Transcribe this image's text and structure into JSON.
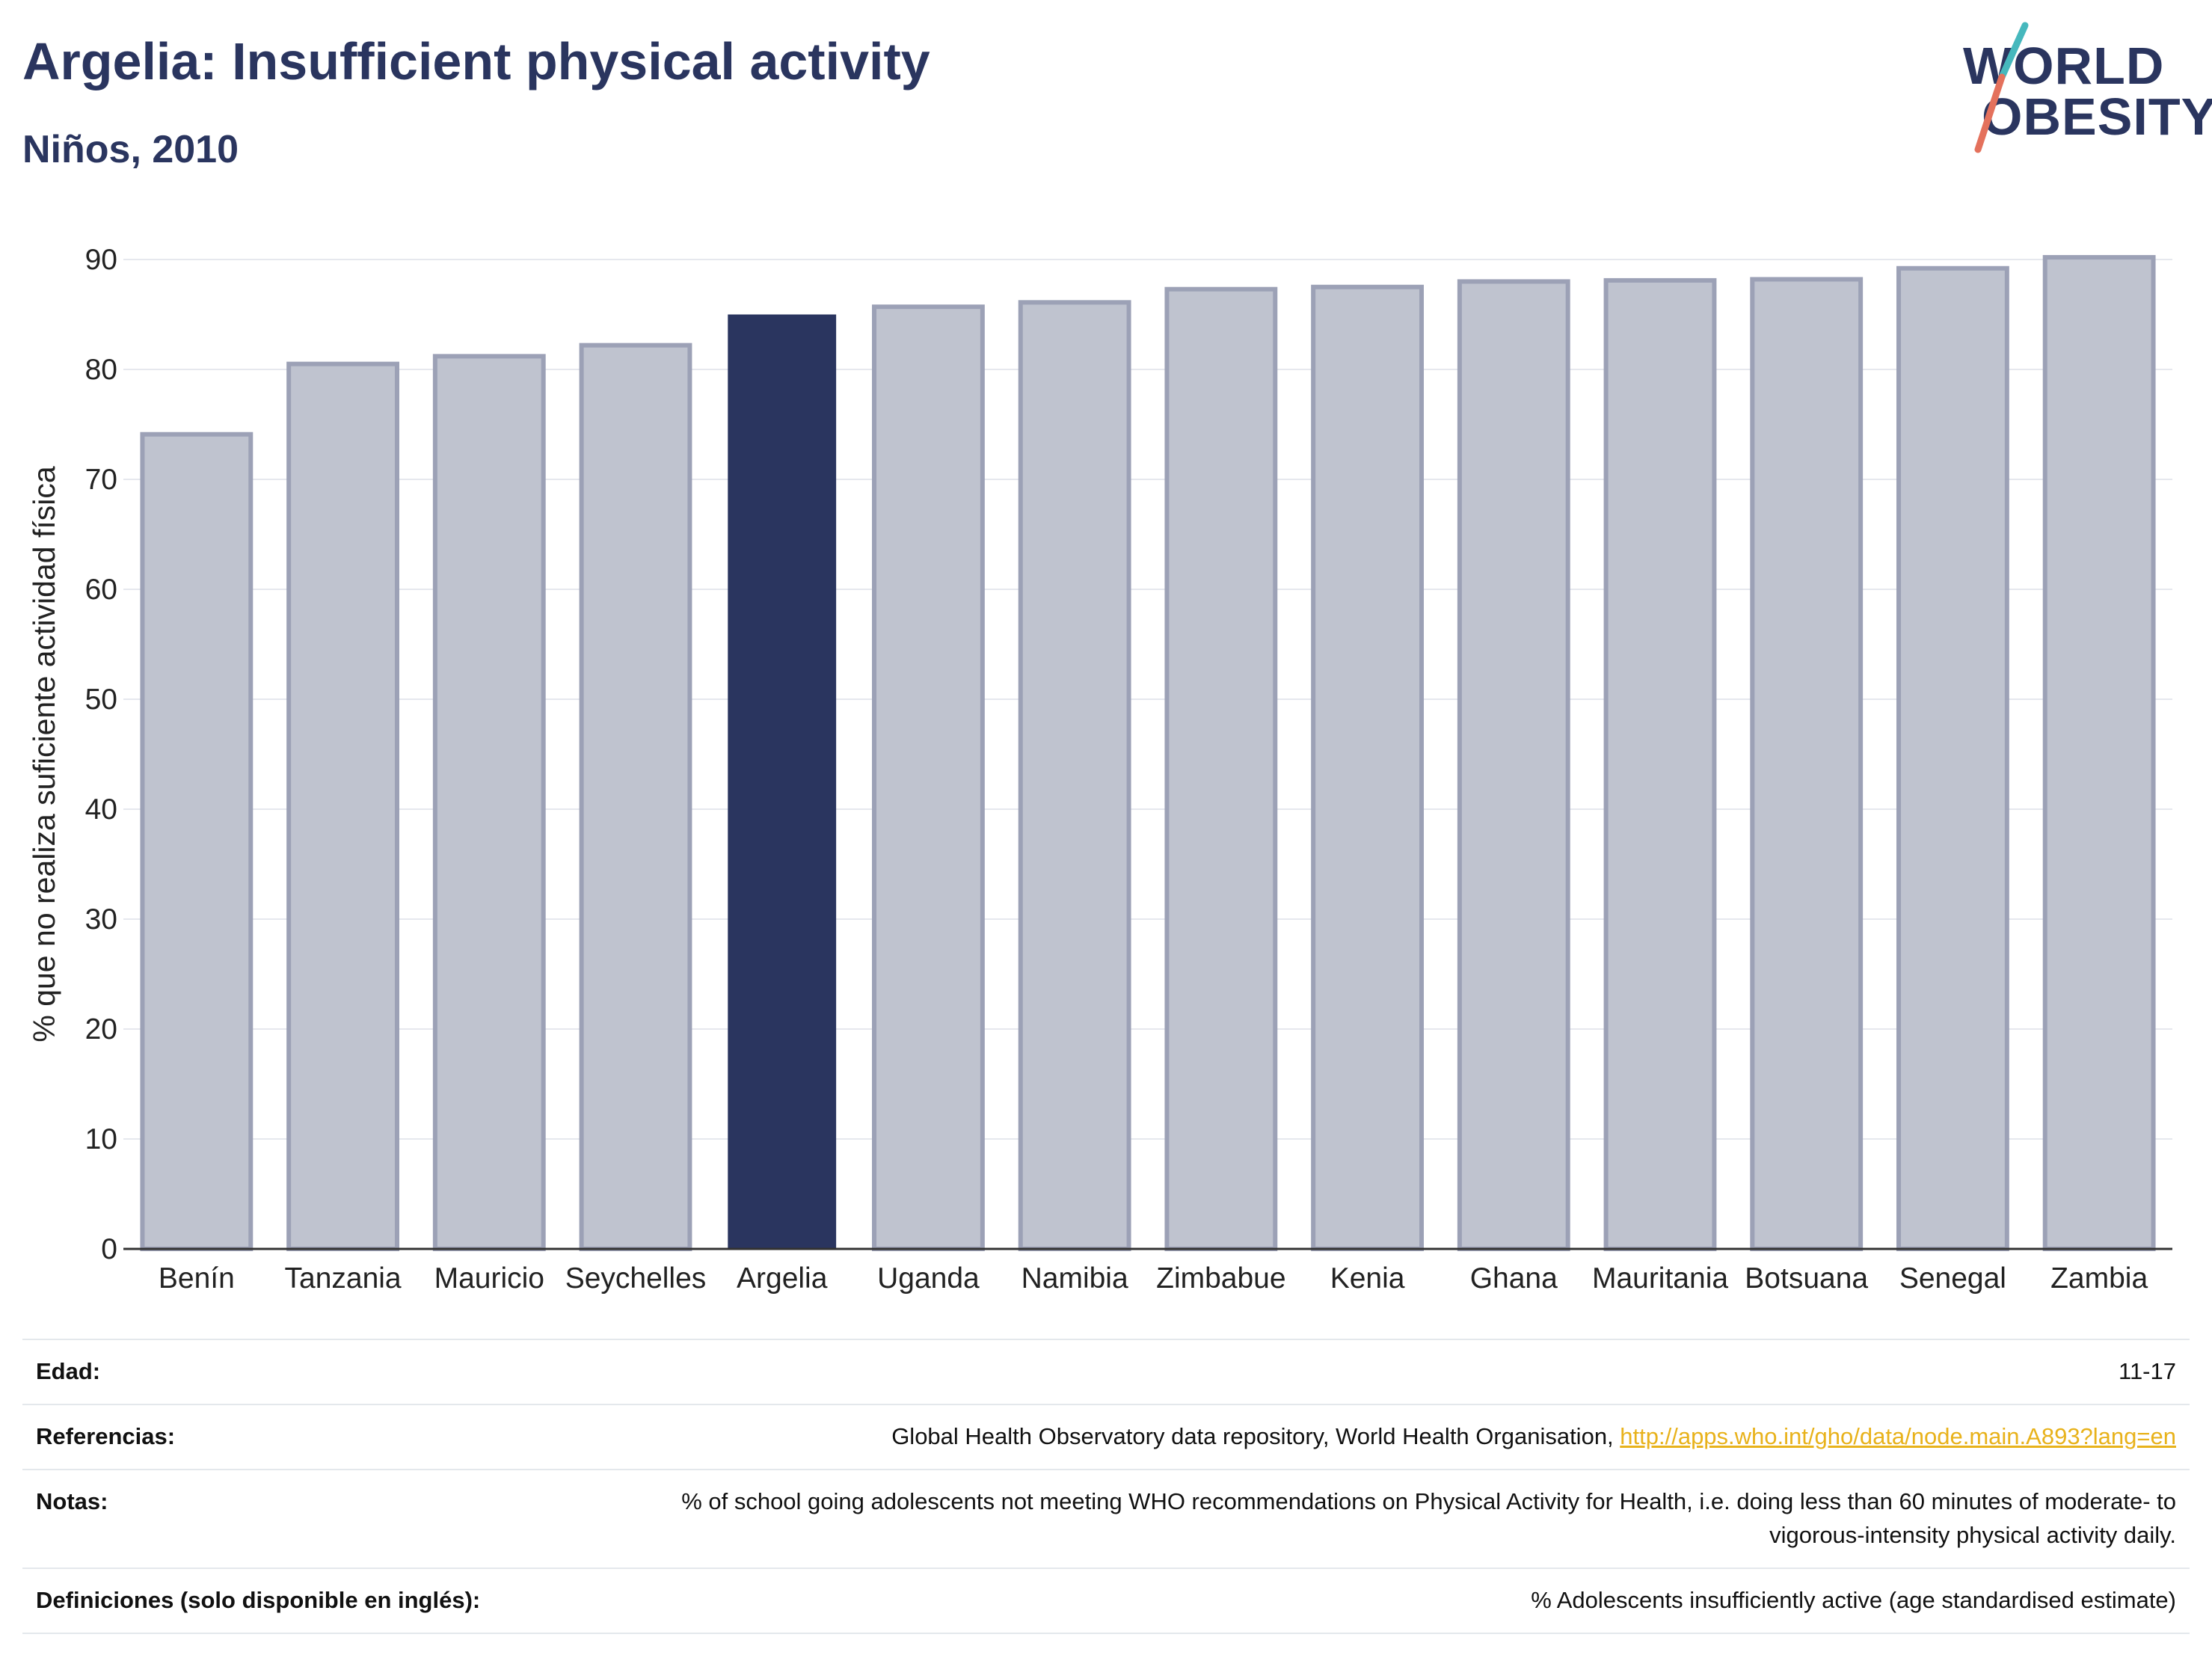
{
  "header": {
    "title": "Argelia: Insufficient physical activity",
    "subtitle": "Niños, 2010"
  },
  "logo": {
    "line1": "WORLD",
    "line2": "OBESITY",
    "slash_colors": [
      "#46b8bd",
      "#e4715c"
    ]
  },
  "colors": {
    "highlight": "#2a355f",
    "other": "#bfc3cf",
    "other_stroke": "#9ca1b6"
  },
  "chart_data": {
    "type": "bar",
    "title": "Argelia: Insufficient physical activity",
    "subtitle": "Niños, 2010",
    "xlabel": "",
    "ylabel": "% que no realiza suficiente actividad física",
    "ylim": [
      0,
      90
    ],
    "yticks": [
      0,
      10,
      20,
      30,
      40,
      50,
      60,
      70,
      80,
      90
    ],
    "grid": true,
    "highlight": "Argelia",
    "categories": [
      "Benín",
      "Tanzania",
      "Mauricio",
      "Seychelles",
      "Argelia",
      "Uganda",
      "Namibia",
      "Zimbabue",
      "Kenia",
      "Ghana",
      "Mauritania",
      "Botsuana",
      "Senegal",
      "Zambia"
    ],
    "values": [
      74.1,
      80.5,
      81.2,
      82.2,
      85.0,
      85.7,
      86.1,
      87.3,
      87.5,
      88.0,
      88.1,
      88.2,
      89.2,
      90.2
    ]
  },
  "info": [
    {
      "key": "Edad:",
      "value": "11-17"
    },
    {
      "key": "Referencias:",
      "value": "Global Health Observatory data repository, World Health Organisation, ",
      "link": "http://apps.who.int/gho/data/node.main.A893?lang=en"
    },
    {
      "key": "Notas:",
      "value": "% of school going adolescents not meeting WHO recommendations on Physical Activity for Health, i.e. doing less than 60 minutes of moderate- to vigorous-intensity physical activity daily."
    },
    {
      "key": "Definiciones (solo disponible en inglés):",
      "value": "% Adolescents insufficiently active (age standardised estimate)"
    }
  ]
}
